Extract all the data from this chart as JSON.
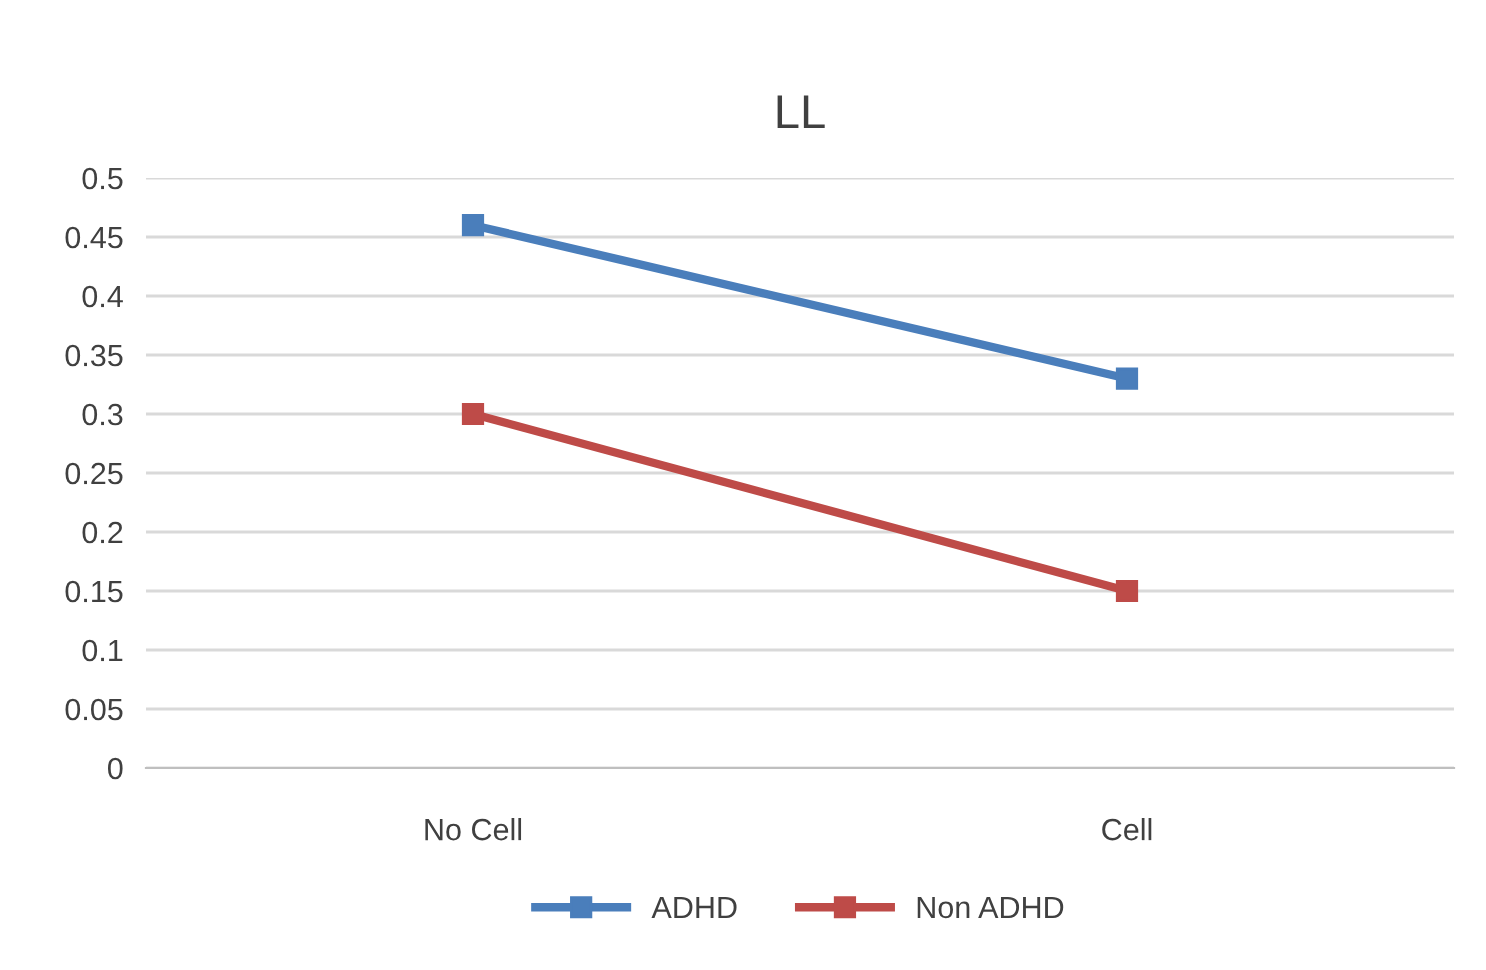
{
  "chart_data": {
    "type": "line",
    "title": "LL",
    "categories": [
      "No Cell",
      "Cell"
    ],
    "series": [
      {
        "name": "ADHD",
        "color": "#4a7ebb",
        "values": [
          0.46,
          0.33
        ]
      },
      {
        "name": "Non ADHD",
        "color": "#be4b48",
        "values": [
          0.3,
          0.15
        ]
      }
    ],
    "ylim": [
      0,
      0.5
    ],
    "yticks": [
      0,
      0.05,
      0.1,
      0.15,
      0.2,
      0.25,
      0.3,
      0.35,
      0.4,
      0.45,
      0.5
    ],
    "grid": "y",
    "legend": "bottom",
    "marker": "square",
    "line_style": "solid"
  }
}
